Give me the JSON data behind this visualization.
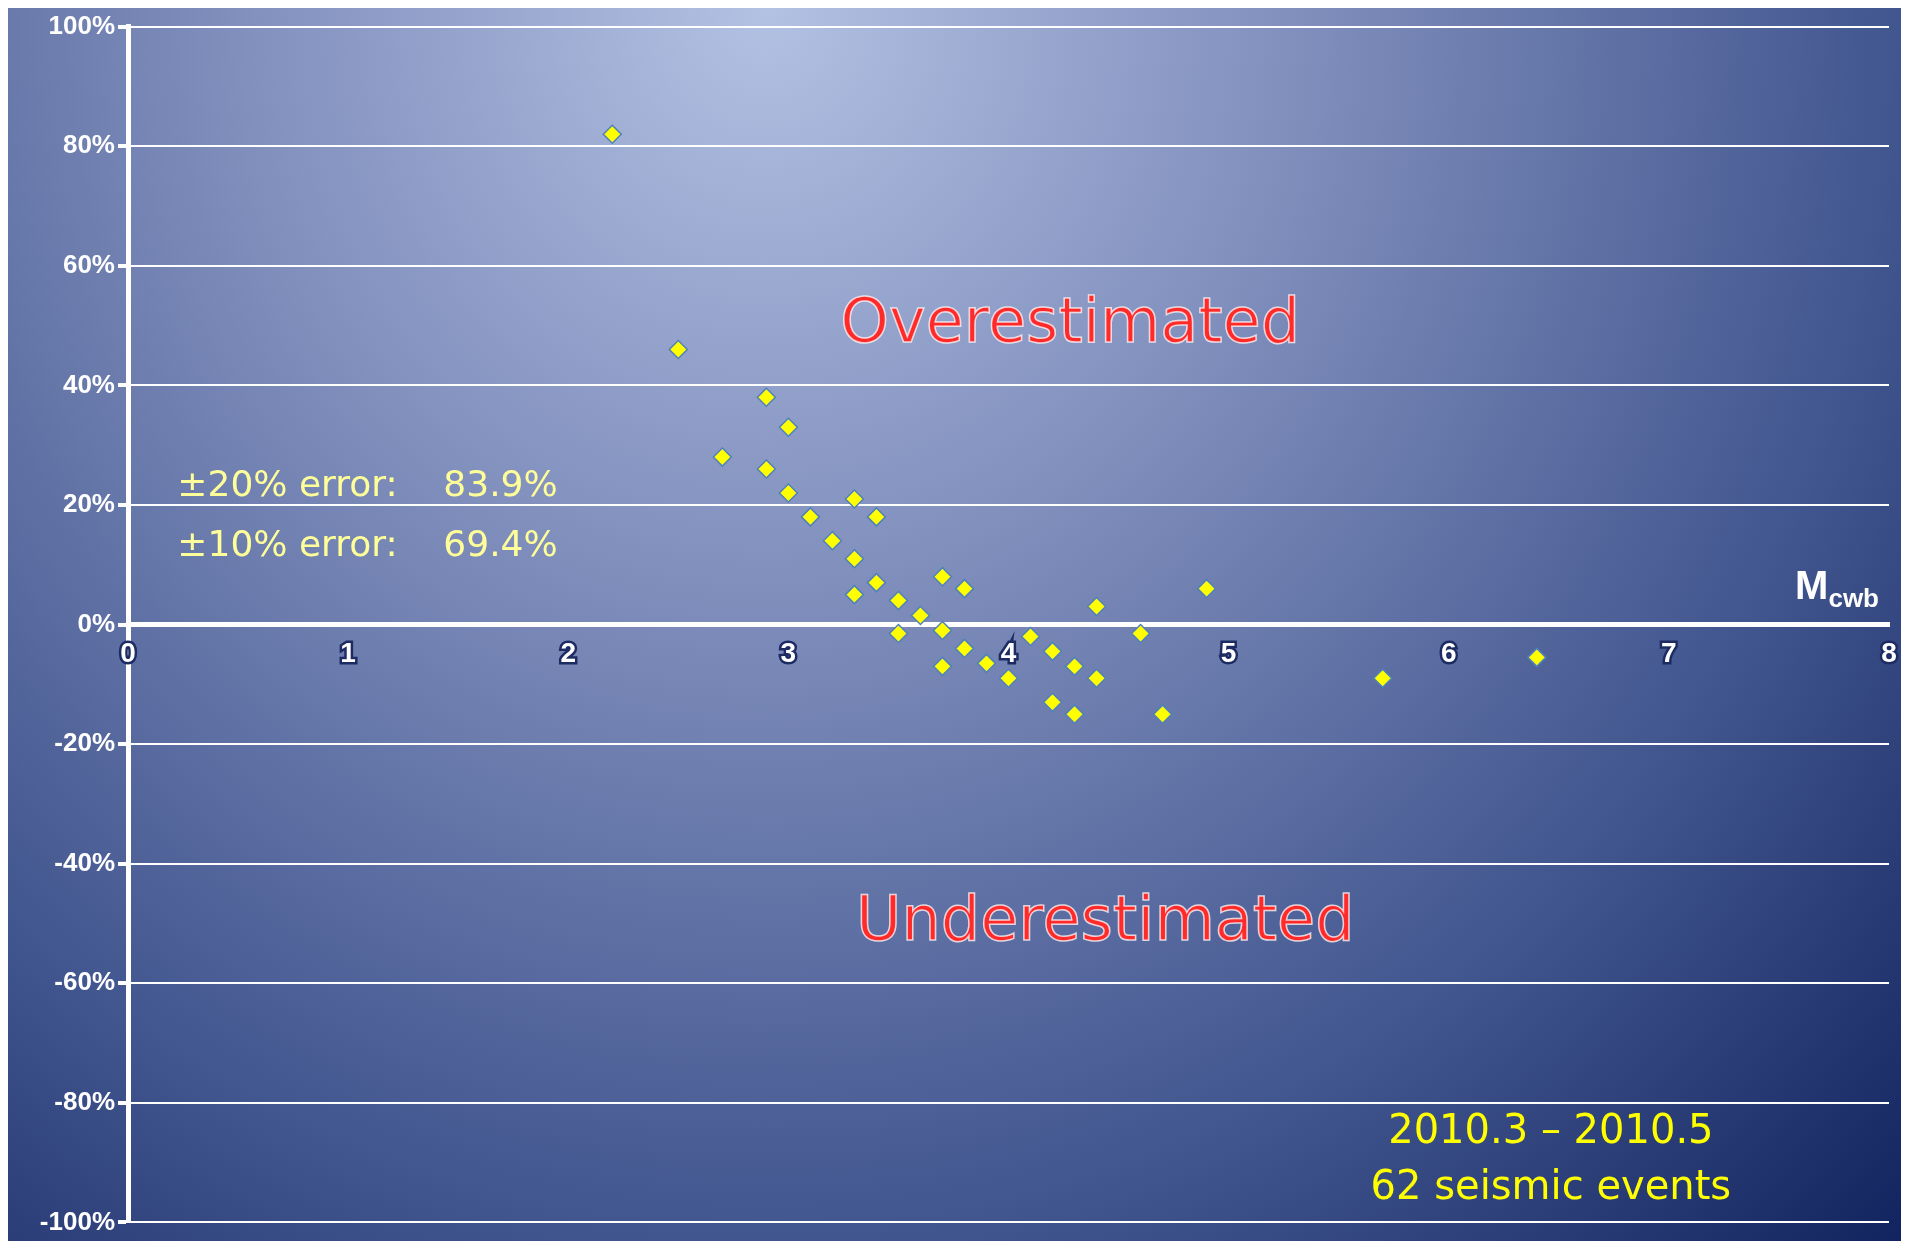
{
  "chart_data": {
    "type": "scatter",
    "xlabel": "M$_{cwb}$",
    "xlim": [
      0,
      8
    ],
    "xticks": [
      0,
      1,
      2,
      3,
      4,
      5,
      6,
      7,
      8
    ],
    "ylim": [
      -100,
      100
    ],
    "yticks": [
      {
        "value": -100,
        "label": "-100%"
      },
      {
        "value": -80,
        "label": "-80%"
      },
      {
        "value": -60,
        "label": "-60%"
      },
      {
        "value": -40,
        "label": "-40%"
      },
      {
        "value": -20,
        "label": "-20%"
      },
      {
        "value": 0,
        "label": "0%"
      },
      {
        "value": 20,
        "label": "20%"
      },
      {
        "value": 40,
        "label": "40%"
      },
      {
        "value": 60,
        "label": "60%"
      },
      {
        "value": 80,
        "label": "80%"
      },
      {
        "value": 100,
        "label": "100%"
      }
    ],
    "grid": "y",
    "legend": false,
    "marker": "diamond",
    "series": [
      {
        "color": "#ffff00",
        "x": [
          2.2,
          2.5,
          2.9,
          3.0,
          2.7,
          2.9,
          3.0,
          3.3,
          3.1,
          3.4,
          3.2,
          3.3,
          3.4,
          3.7,
          3.8,
          3.3,
          3.5,
          3.6,
          4.4,
          4.9,
          3.5,
          3.7,
          4.1,
          4.6,
          3.7,
          3.8,
          3.9,
          4.0,
          4.2,
          4.3,
          4.4,
          4.2,
          4.3,
          4.7,
          5.7,
          6.4
        ],
        "values": [
          82,
          46,
          38,
          33,
          28,
          26,
          22,
          21,
          18,
          18,
          14,
          11,
          7,
          8,
          6,
          5,
          4,
          1.5,
          3,
          6,
          -1.5,
          -1,
          -2,
          -1.5,
          -7,
          -4,
          -6.5,
          -9,
          -4.5,
          -7,
          -9,
          -13,
          -15,
          -15,
          -9,
          -5.5
        ]
      }
    ],
    "annotations": [
      "Overestimated",
      "Underestimated",
      "±20% error:    83.9%",
      "±10% error:    69.4%",
      "2010.3 – 2010.5",
      "62 seismic events"
    ]
  }
}
